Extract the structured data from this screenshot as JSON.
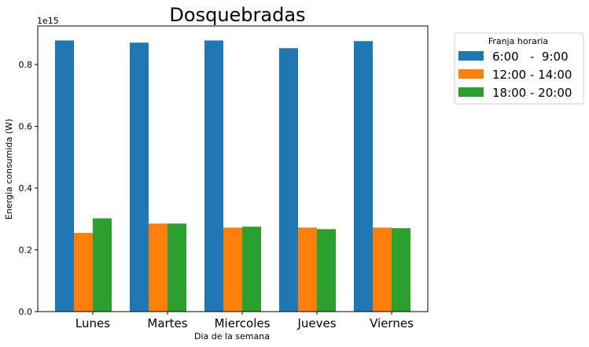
{
  "chart_data": {
    "type": "bar",
    "title": "Dosquebradas",
    "xlabel": "Dia de la semana",
    "ylabel": "Energia consumida  (W)",
    "y_offset_label": "1e15",
    "ylim": [
      0,
      0.925
    ],
    "yticks": [
      "0.0",
      "0.2",
      "0.4",
      "0.6",
      "0.8"
    ],
    "ytick_values": [
      0.0,
      0.2,
      0.4,
      0.6,
      0.8
    ],
    "categories": [
      "Lunes",
      "Martes",
      "Miercoles",
      "Jueves",
      "Viernes"
    ],
    "series": [
      {
        "name": "6:00   -  9:00",
        "color": "#1f77b4",
        "values": [
          0.878,
          0.871,
          0.878,
          0.853,
          0.876
        ]
      },
      {
        "name": "12:00 - 14:00",
        "color": "#ff7f0e",
        "values": [
          0.255,
          0.285,
          0.272,
          0.272,
          0.272
        ]
      },
      {
        "name": "18:00 - 20:00",
        "color": "#2ca02c",
        "values": [
          0.302,
          0.285,
          0.275,
          0.267,
          0.27
        ]
      }
    ],
    "legend_title": "Franja horaria",
    "legend_placement": "outside-right-top",
    "grid": false
  }
}
